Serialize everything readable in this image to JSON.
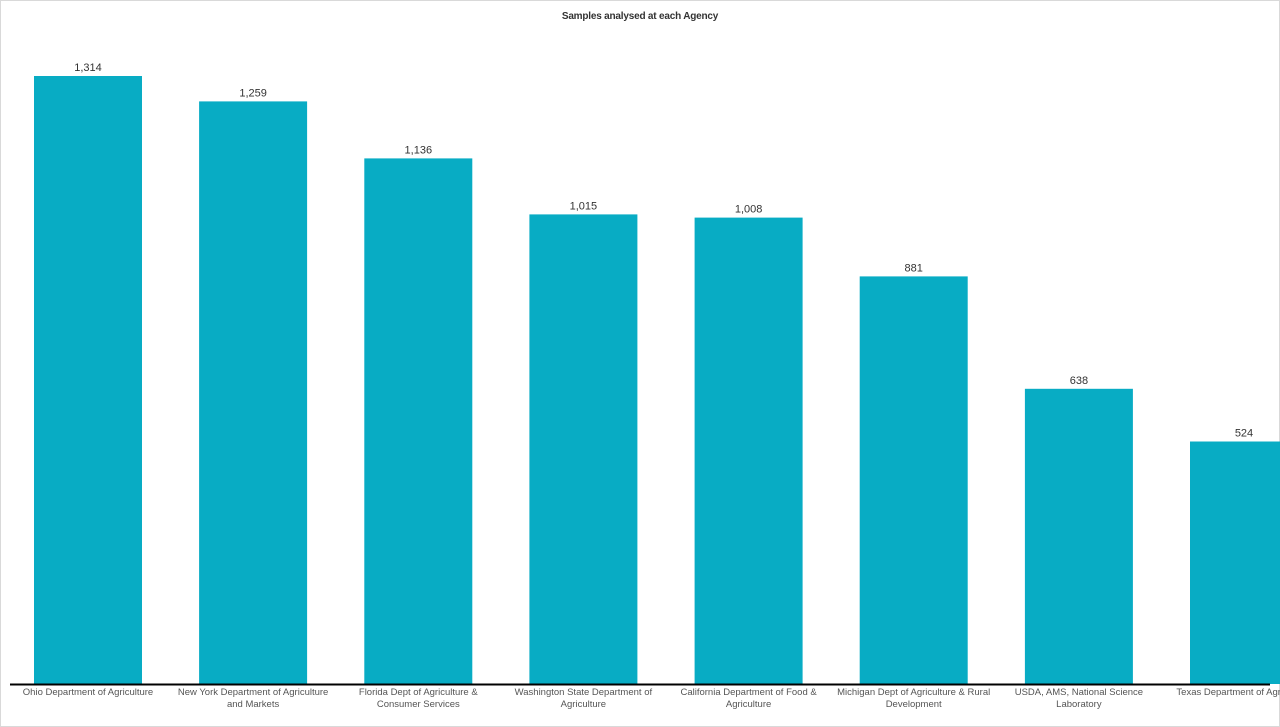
{
  "chart_data": {
    "type": "bar",
    "title": "Samples analysed at each Agency",
    "xlabel": "",
    "ylabel": "",
    "ylim": [
      0,
      1500
    ],
    "grid": false,
    "legend": "none",
    "color": "#08acc4",
    "axis_color": "#000000",
    "categories": [
      "Ohio Department of Agriculture",
      "New York Department of Agriculture and Markets",
      "Florida Dept of Agriculture & Consumer Services",
      "Washington State Department of Agriculture",
      "California Department of Food & Agriculture",
      "Michigan Dept of Agriculture & Rural Development",
      "USDA, AMS, National Science Laboratory",
      "Texas Department of Agriculture"
    ],
    "values": [
      1314,
      1259,
      1136,
      1015,
      1008,
      881,
      638,
      524
    ],
    "value_labels": [
      "1,314",
      "1,259",
      "1,136",
      "1,015",
      "1,008",
      "881",
      "638",
      "524"
    ]
  }
}
